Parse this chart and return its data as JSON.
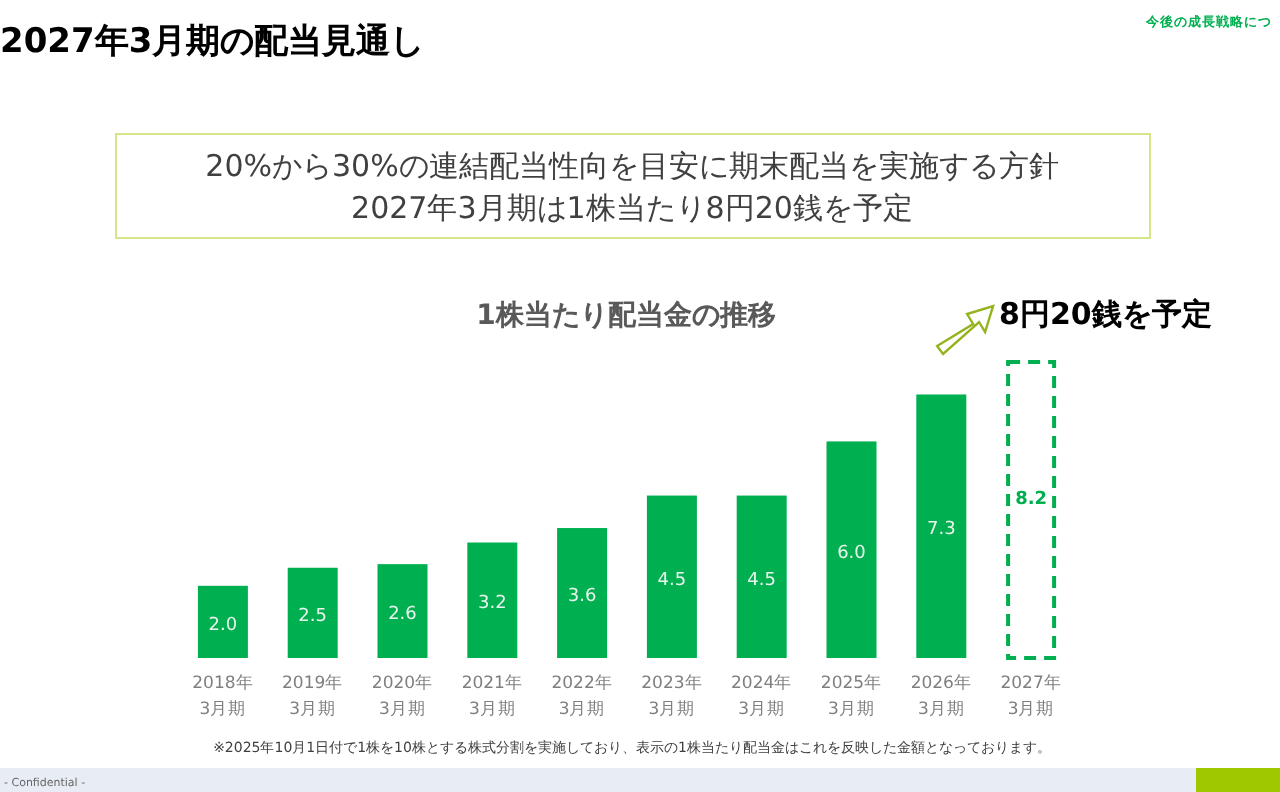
{
  "chart_data": {
    "type": "bar",
    "title": "1株当たり配当金の推移",
    "categories": [
      "2018年\n3月期",
      "2019年\n3月期",
      "2020年\n3月期",
      "2021年\n3月期",
      "2022年\n3月期",
      "2023年\n3月期",
      "2024年\n3月期",
      "2025年\n3月期",
      "2026年\n3月期",
      "2027年\n3月期"
    ],
    "series": [
      {
        "color": "#00b050",
        "values": [
          2.0,
          2.5,
          2.6,
          3.2,
          3.6,
          4.5,
          4.5,
          6.0,
          7.3,
          null
        ],
        "value_labels": [
          "2.0",
          "2.5",
          "2.6",
          "3.2",
          "3.6",
          "4.5",
          "4.5",
          "6.0",
          "7.3",
          null
        ]
      },
      {
        "color": "#00b050",
        "line_style": "dashed",
        "values": [
          null,
          null,
          null,
          null,
          null,
          null,
          null,
          null,
          null,
          8.2
        ],
        "value_labels": [
          null,
          null,
          null,
          null,
          null,
          null,
          null,
          null,
          null,
          "8.2"
        ]
      }
    ],
    "annotations": [
      "2027年3月期の配当見通し",
      "今後の成長戦略につ",
      "20%から30%の連結配当性向を目安に期末配当を実施する方針\n2027年3月期は1株当たり8円20銭を予定",
      {
        "text": "8円20銭を予定",
        "x": "2027年\n3月期",
        "y": 8.2
      },
      "※2025年10月1日付で1株を10株とする株式分割を実施しており、表示の1株当たり配当金はこれを反映した金額となっております。",
      "- Confidential -"
    ]
  }
}
